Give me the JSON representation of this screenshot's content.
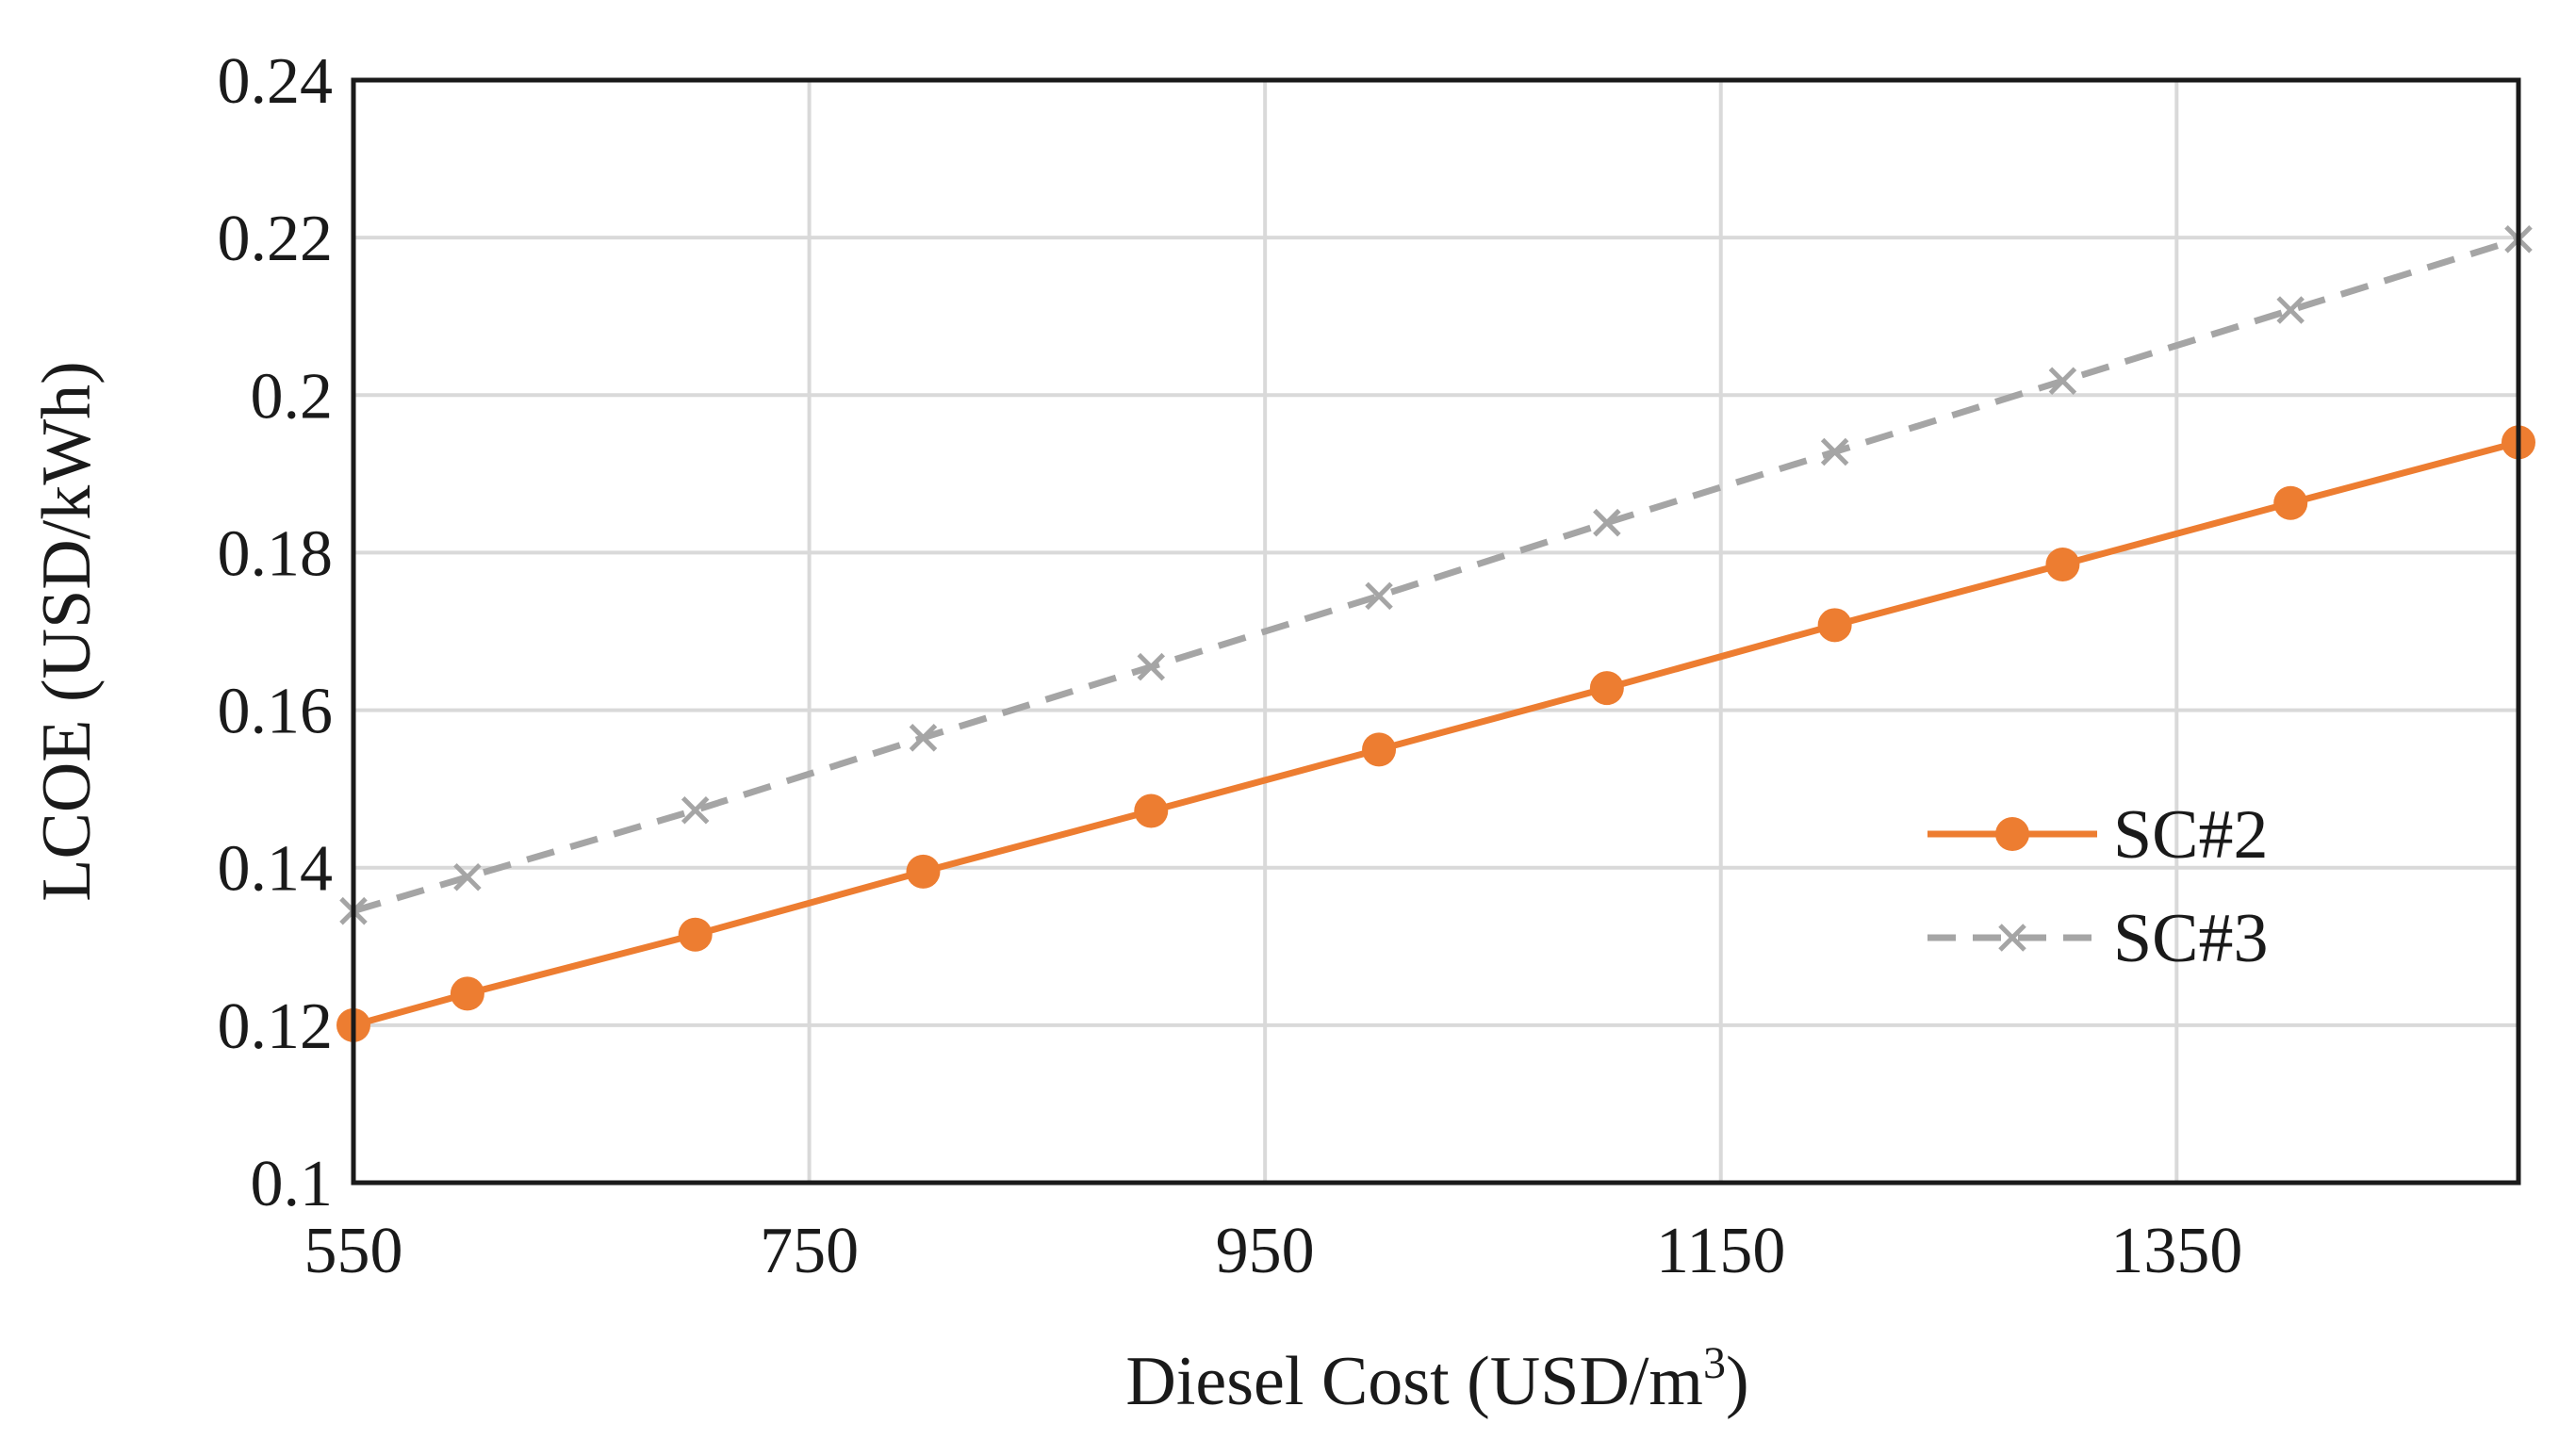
{
  "chart_data": {
    "type": "line",
    "title": "",
    "xlabel": "Diesel Cost (USD/m",
    "xlabel_sup": "3",
    "xlabel_suffix": ")",
    "ylabel": "LCOE (USD/kWh)",
    "xlim": [
      550,
      1500
    ],
    "ylim": [
      0.1,
      0.24
    ],
    "x_ticks": [
      550,
      750,
      950,
      1150,
      1350
    ],
    "x_tick_labels": [
      "550",
      "750",
      "950",
      "1150",
      "1350"
    ],
    "y_ticks": [
      0.1,
      0.12,
      0.14,
      0.16,
      0.18,
      0.2,
      0.22,
      0.24
    ],
    "y_tick_labels": [
      "0.1",
      "0.12",
      "0.14",
      "0.16",
      "0.18",
      "0.2",
      "0.22",
      "0.24"
    ],
    "grid": true,
    "legend_position": "right",
    "series": [
      {
        "name": "SC#2",
        "color": "#ED7D31",
        "line_style": "solid",
        "marker": "circle",
        "x": [
          550,
          600,
          700,
          800,
          900,
          1000,
          1100,
          1200,
          1300,
          1400,
          1500
        ],
        "y": [
          0.12,
          0.124,
          0.1315,
          0.1395,
          0.1472,
          0.155,
          0.1628,
          0.1708,
          0.1785,
          0.1863,
          0.194
        ]
      },
      {
        "name": "SC#3",
        "color": "#A5A5A5",
        "line_style": "dashed",
        "marker": "x",
        "x": [
          550,
          600,
          700,
          800,
          900,
          1000,
          1100,
          1200,
          1300,
          1400,
          1500
        ],
        "y": [
          0.1345,
          0.1388,
          0.1473,
          0.1565,
          0.1655,
          0.1745,
          0.1838,
          0.1928,
          0.2018,
          0.2108,
          0.2198
        ]
      }
    ]
  }
}
